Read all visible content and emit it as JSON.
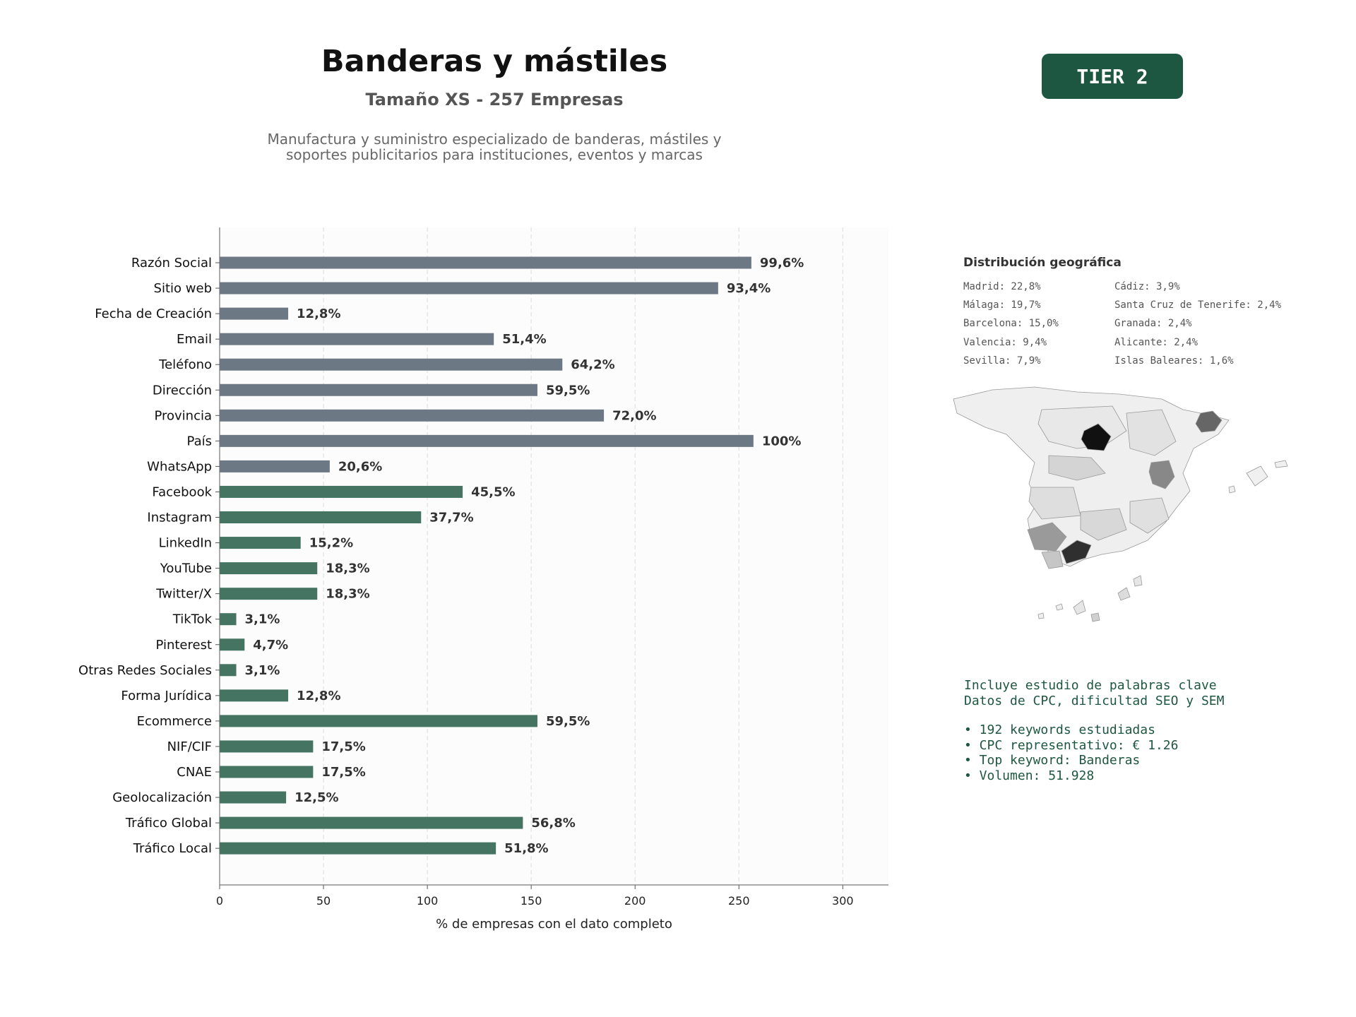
{
  "header": {
    "title": "Banderas y mástiles",
    "subtitle": "Tamaño XS - 257 Empresas",
    "description_lines": [
      "Manufactura y suministro especializado de banderas, mástiles y",
      "soportes publicitarios para instituciones, eventos y marcas"
    ],
    "tier_label": "TIER 2"
  },
  "colors": {
    "contact_bar": "#6c7883",
    "digital_bar": "#457562",
    "tier_bg": "#1e5741",
    "keyword_text": "#1e5741"
  },
  "chart_data": {
    "type": "bar",
    "orientation": "horizontal",
    "categories": [
      "Razón Social",
      "Sitio web",
      "Fecha de Creación",
      "Email",
      "Teléfono",
      "Dirección",
      "Provincia",
      "País",
      "WhatsApp",
      "Facebook",
      "Instagram",
      "LinkedIn",
      "YouTube",
      "Twitter/X",
      "TikTok",
      "Pinterest",
      "Otras Redes Sociales",
      "Forma Jurídica",
      "Ecommerce",
      "NIF/CIF",
      "CNAE",
      "Geolocalización",
      "Tráfico Global",
      "Tráfico Local"
    ],
    "values": [
      256,
      240,
      33,
      132,
      165,
      153,
      185,
      257,
      53,
      117,
      97,
      39,
      47,
      47,
      8,
      12,
      8,
      33,
      153,
      45,
      45,
      32,
      146,
      133
    ],
    "labels": [
      "99,6%",
      "93,4%",
      "12,8%",
      "51,4%",
      "64,2%",
      "59,5%",
      "72,0%",
      "100%",
      "20,6%",
      "45,5%",
      "37,7%",
      "15,2%",
      "18,3%",
      "18,3%",
      "3,1%",
      "4,7%",
      "3,1%",
      "12,8%",
      "59,5%",
      "17,5%",
      "17,5%",
      "12,5%",
      "56,8%",
      "51,8%"
    ],
    "groups": [
      "contact",
      "contact",
      "contact",
      "contact",
      "contact",
      "contact",
      "contact",
      "contact",
      "contact",
      "digital",
      "digital",
      "digital",
      "digital",
      "digital",
      "digital",
      "digital",
      "digital",
      "digital",
      "digital",
      "digital",
      "digital",
      "digital",
      "digital",
      "digital"
    ],
    "xlabel": "% de empresas con el dato completo",
    "ylabel": "",
    "xlim": [
      0,
      322
    ],
    "xticks": [
      0,
      50,
      100,
      150,
      200,
      250,
      300
    ],
    "grid": "vertical dashed",
    "title": ""
  },
  "geo": {
    "title": "Distribución geográfica",
    "col1": [
      "Madrid: 22,8%",
      "Málaga: 19,7%",
      "Barcelona: 15,0%",
      "Valencia: 9,4%",
      "Sevilla: 7,9%"
    ],
    "col2": [
      "Cádiz: 3,9%",
      "Santa Cruz de Tenerife: 2,4%",
      "Granada: 2,4%",
      "Alicante: 2,4%",
      "Islas Baleares: 1,6%"
    ]
  },
  "keywords": {
    "line1": "Incluye estudio de palabras clave",
    "line2": "Datos de CPC, dificultad SEO y SEM",
    "bullets": [
      "• 192 keywords estudiadas",
      "• CPC representativo: € 1.26",
      "• Top keyword: Banderas",
      "• Volumen: 51.928"
    ]
  }
}
